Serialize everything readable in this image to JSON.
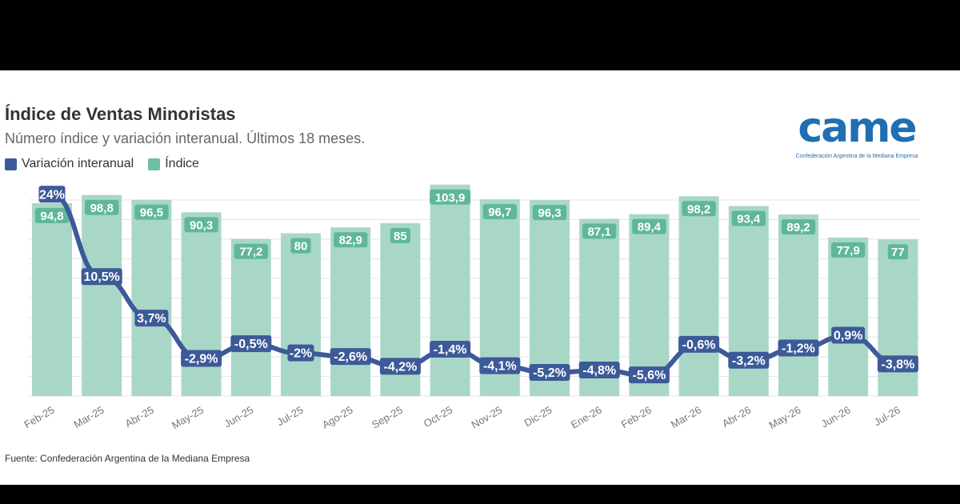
{
  "header": {
    "title": "Índice de Ventas Minoristas",
    "subtitle": "Número índice y variación interanual. Últimos 18 meses."
  },
  "legend": [
    {
      "label": "Variación interanual",
      "color": "#3d5a98"
    },
    {
      "label": "Índice",
      "color": "#6dbfa6"
    }
  ],
  "logo": {
    "text": "came",
    "tagline": "Confederación Argentina de la Mediana Empresa"
  },
  "source": "Fuente: Confederación Argentina de la Mediana Empresa",
  "chart_data": {
    "type": "bar",
    "categories": [
      "Feb-25",
      "Mar-25",
      "Abr-25",
      "May-25",
      "Jun-25",
      "Jul-25",
      "Ago-25",
      "Sep-25",
      "Oct-25",
      "Nov-25",
      "Dic-25",
      "Ene-26",
      "Feb-26",
      "Mar-26",
      "Abr-26",
      "May-26",
      "Jun-26",
      "Jul-26"
    ],
    "series": [
      {
        "name": "Índice",
        "type": "bar",
        "color": "#a9d7c7",
        "label_color": "#5fb79b",
        "values": [
          94.8,
          98.8,
          96.5,
          90.3,
          77.2,
          80,
          82.9,
          85,
          103.9,
          96.7,
          96.3,
          87.1,
          89.4,
          98.2,
          93.4,
          89.2,
          77.9,
          77
        ],
        "labels": [
          "94,8",
          "98,8",
          "96,5",
          "90,3",
          "77,2",
          "80",
          "82,9",
          "85",
          "103,9",
          "96,7",
          "96,3",
          "87,1",
          "89,4",
          "98,2",
          "93,4",
          "89,2",
          "77,9",
          "77"
        ]
      },
      {
        "name": "Variación interanual",
        "type": "line",
        "color": "#3d5a98",
        "values": [
          24,
          10.5,
          3.7,
          -2.9,
          -0.5,
          -2,
          -2.6,
          -4.2,
          -1.4,
          -4.1,
          -5.2,
          -4.8,
          -5.6,
          -0.6,
          -3.2,
          -1.2,
          0.9,
          -3.8
        ],
        "labels": [
          "24%",
          "10,5%",
          "3,7%",
          "-2,9%",
          "-0,5%",
          "-2%",
          "-2,6%",
          "-4,2%",
          "-1,4%",
          "-4,1%",
          "-5,2%",
          "-4,8%",
          "-5,6%",
          "-0,6%",
          "-3,2%",
          "-1,2%",
          "0,9%",
          "-3,8%"
        ]
      }
    ],
    "index_range": [
      0,
      105
    ],
    "variation_range": [
      -9,
      26
    ],
    "grid": true,
    "legend_position": "top-left"
  }
}
